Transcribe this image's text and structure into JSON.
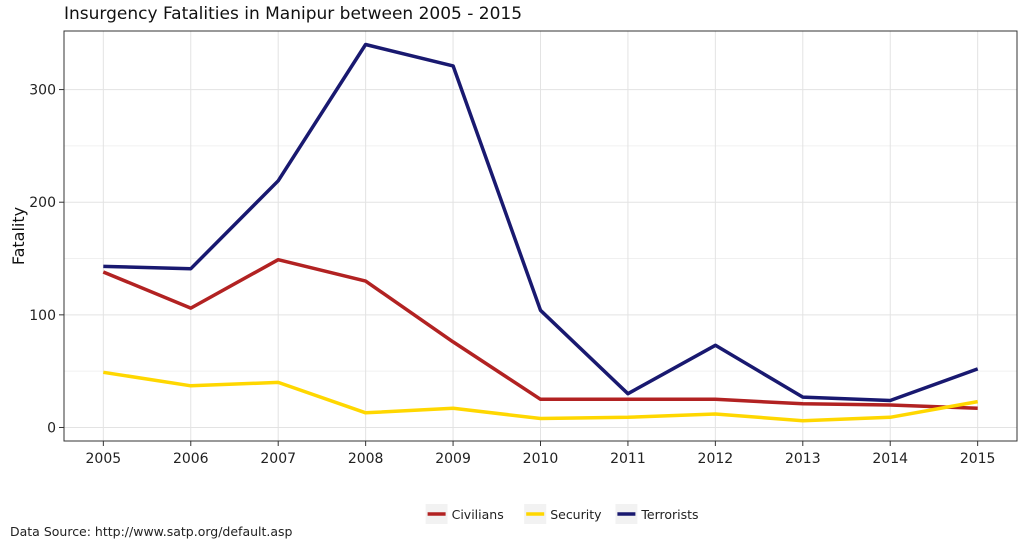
{
  "chart_data": {
    "type": "line",
    "title": "Insurgency Fatalities in Manipur between 2005 - 2015",
    "xlabel": "",
    "ylabel": "Fatality",
    "x": [
      2005,
      2006,
      2007,
      2008,
      2009,
      2010,
      2011,
      2012,
      2013,
      2014,
      2015
    ],
    "x_tick_labels": [
      "2005",
      "2006",
      "2007",
      "2008",
      "2009",
      "2010",
      "2011",
      "2012",
      "2013",
      "2014",
      "2015"
    ],
    "ylim": [
      -12,
      352
    ],
    "y_ticks": [
      0,
      100,
      200,
      300
    ],
    "y_tick_labels": [
      "0",
      "100",
      "200",
      "300"
    ],
    "grid": true,
    "legend_position": "bottom",
    "series": [
      {
        "name": "Civilians",
        "color": "#b22222",
        "values": [
          138,
          106,
          149,
          130,
          76,
          25,
          25,
          25,
          21,
          20,
          17
        ]
      },
      {
        "name": "Security",
        "color": "#ffd700",
        "values": [
          49,
          37,
          40,
          13,
          17,
          8,
          9,
          12,
          6,
          9,
          23
        ]
      },
      {
        "name": "Terrorists",
        "color": "#191970",
        "values": [
          143,
          141,
          219,
          340,
          321,
          104,
          30,
          73,
          27,
          24,
          52
        ]
      }
    ],
    "annotation": "Data Source: http://www.satp.org/default.asp"
  }
}
